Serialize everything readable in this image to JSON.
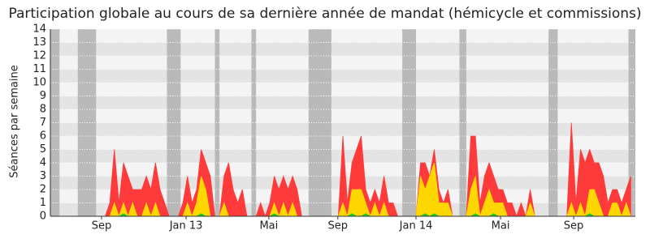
{
  "chart_data": {
    "type": "area",
    "title": "Participation globale au cours de sa dernière année de mandat (hémicycle et commissions)",
    "y_label": "Séances par semaine",
    "x": [
      0,
      1,
      2,
      3,
      4,
      5,
      6,
      7,
      8,
      9,
      10,
      11,
      12,
      13,
      14,
      15,
      16,
      17,
      18,
      19,
      20,
      21,
      22,
      23,
      24,
      25,
      26,
      27,
      28,
      29,
      30,
      31,
      32,
      33,
      34,
      35,
      36,
      37,
      38,
      39,
      40,
      41,
      42,
      43,
      44,
      45,
      46,
      47,
      48,
      49,
      50,
      51,
      52,
      53,
      54,
      55,
      56,
      57,
      58,
      59,
      60,
      61,
      62,
      63,
      64,
      65,
      66,
      67,
      68,
      69,
      70,
      71,
      72,
      73,
      74,
      75,
      76,
      77,
      78,
      79,
      80,
      81,
      82,
      83,
      84,
      85,
      86,
      87,
      88,
      89,
      90,
      91,
      92,
      93,
      94,
      95,
      96,
      97,
      98,
      99,
      100,
      101,
      102,
      103,
      104,
      105,
      106,
      107,
      108,
      109,
      110,
      111,
      112,
      113,
      114,
      115,
      116,
      117,
      118,
      119,
      120,
      121,
      122,
      123,
      124,
      125,
      126,
      127
    ],
    "series": [
      {
        "color": "#ff3a3a",
        "values": [
          0,
          0,
          0,
          0,
          0,
          0,
          0,
          0,
          0,
          0,
          0,
          0,
          0,
          1,
          5,
          1,
          4,
          3,
          2,
          2,
          2,
          3,
          2,
          4,
          2,
          1,
          0,
          0,
          0,
          1,
          3,
          1,
          2,
          5,
          4,
          3,
          0,
          0,
          3,
          4,
          2,
          1,
          2,
          0,
          0,
          0,
          1,
          0,
          1,
          3,
          2,
          3,
          2,
          3,
          2,
          0,
          0,
          0,
          0,
          0,
          0,
          0,
          0,
          0,
          6,
          1,
          4,
          5,
          6,
          2,
          1,
          2,
          1,
          3,
          1,
          1,
          0,
          0,
          0,
          0,
          0,
          4,
          4,
          3,
          5,
          2,
          1,
          2,
          0,
          0,
          0,
          0,
          6,
          6,
          1,
          3,
          4,
          3,
          2,
          2,
          1,
          1,
          0,
          1,
          0,
          2,
          0,
          0,
          0,
          0,
          0,
          0,
          0,
          0,
          7,
          1,
          5,
          4,
          5,
          4,
          4,
          3,
          1,
          2,
          2,
          1,
          2,
          3
        ]
      },
      {
        "color": "#ffd700",
        "values": [
          0,
          0,
          0,
          0,
          0,
          0,
          0,
          0,
          0,
          0,
          0,
          0,
          0,
          0,
          1,
          0,
          1,
          0,
          1,
          0,
          0,
          1,
          0,
          1,
          0,
          0,
          0,
          0,
          0,
          0,
          1,
          0,
          1,
          3,
          2,
          0,
          0,
          0,
          1,
          0,
          0,
          0,
          0,
          0,
          0,
          0,
          0,
          0,
          0,
          1,
          0,
          1,
          0,
          1,
          0,
          0,
          0,
          0,
          0,
          0,
          0,
          0,
          0,
          0,
          1,
          0,
          2,
          2,
          2,
          1,
          0,
          1,
          0,
          1,
          0,
          0,
          0,
          0,
          0,
          0,
          0,
          3,
          2,
          3,
          4,
          1,
          1,
          1,
          0,
          0,
          0,
          0,
          2,
          3,
          0,
          1,
          2,
          1,
          1,
          1,
          0,
          0,
          0,
          0,
          0,
          1,
          0,
          0,
          0,
          0,
          0,
          0,
          0,
          0,
          1,
          0,
          1,
          0,
          2,
          2,
          1,
          0,
          0,
          1,
          1,
          0,
          1,
          0
        ]
      },
      {
        "color": "#22cc22",
        "values": [
          0,
          0,
          0,
          0,
          0,
          0,
          0,
          0,
          0,
          0,
          0,
          0,
          0,
          0,
          0,
          0,
          0.2,
          0,
          0,
          0,
          0,
          0,
          0,
          0,
          0,
          0,
          0,
          0,
          0,
          0,
          0,
          0,
          0,
          0.2,
          0,
          0,
          0,
          0,
          0,
          0,
          0,
          0,
          0,
          0,
          0,
          0,
          0,
          0,
          0,
          0.2,
          0,
          0,
          0,
          0,
          0,
          0,
          0,
          0,
          0,
          0,
          0,
          0,
          0,
          0,
          0,
          0,
          0.2,
          0,
          0,
          0.2,
          0,
          0,
          0,
          0,
          0,
          0,
          0,
          0,
          0,
          0,
          0,
          0,
          0.2,
          0,
          0.2,
          0,
          0,
          0,
          0,
          0,
          0,
          0,
          0,
          0.2,
          0,
          0,
          0,
          0.2,
          0,
          0,
          0,
          0,
          0,
          0,
          0,
          0,
          0,
          0,
          0,
          0,
          0,
          0,
          0,
          0,
          0,
          0,
          0,
          0,
          0.2,
          0,
          0,
          0,
          0,
          0,
          0,
          0,
          0,
          0
        ]
      }
    ],
    "vacations": [
      [
        0,
        2
      ],
      [
        6,
        10
      ],
      [
        25.5,
        28.5
      ],
      [
        36,
        37
      ],
      [
        44,
        45
      ],
      [
        56.5,
        61.5
      ],
      [
        77,
        80
      ],
      [
        89.5,
        91
      ],
      [
        109,
        111
      ],
      [
        126.5,
        128
      ]
    ],
    "vacation_color": "#b4b4b4",
    "xlim": [
      0,
      128
    ],
    "xticks": [
      {
        "value": 11.2,
        "label": "Sep"
      },
      {
        "value": 29.7,
        "label": "Jan 13"
      },
      {
        "value": 47.8,
        "label": "Mai"
      },
      {
        "value": 62.9,
        "label": "Sep"
      },
      {
        "value": 80,
        "label": "Jan 14"
      },
      {
        "value": 98.5,
        "label": "Mai"
      },
      {
        "value": 114.5,
        "label": "Sep"
      }
    ],
    "ylim": [
      0,
      14
    ],
    "yticks": [
      0,
      1,
      2,
      3,
      4,
      5,
      6,
      7,
      8,
      9,
      10,
      11,
      12,
      13,
      14
    ],
    "grid": true
  }
}
